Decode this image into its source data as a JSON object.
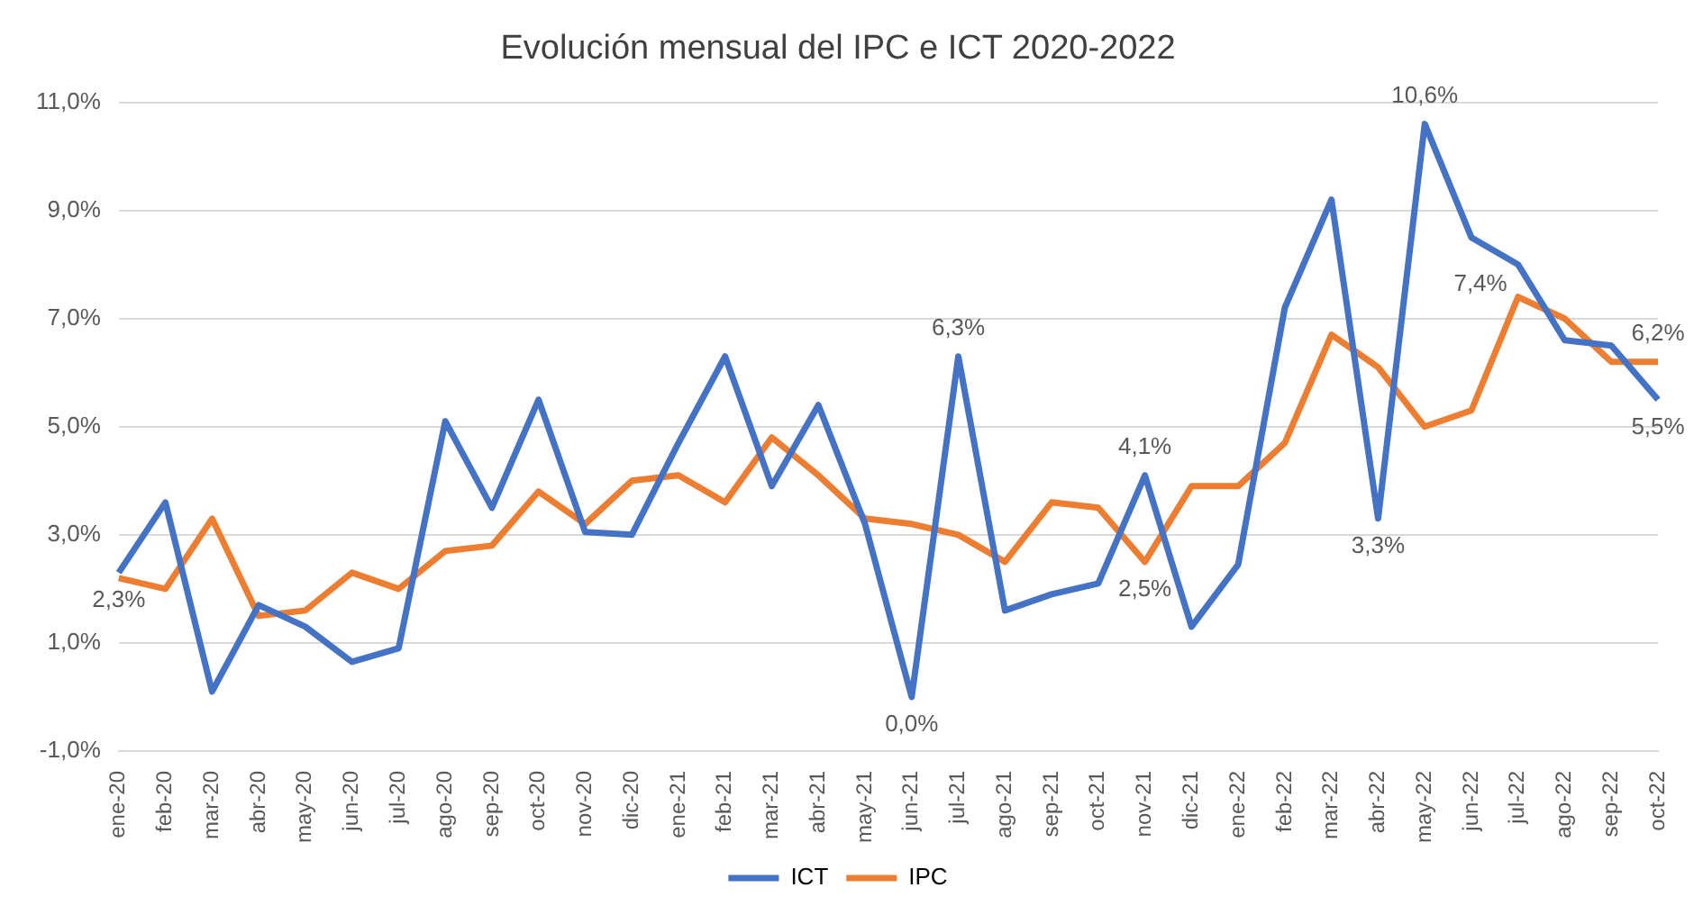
{
  "chart_data": {
    "type": "line",
    "title": "Evolución mensual del IPC e ICT 2020-2022",
    "categories": [
      "ene-20",
      "feb-20",
      "mar-20",
      "abr-20",
      "may-20",
      "jun-20",
      "jul-20",
      "ago-20",
      "sep-20",
      "oct-20",
      "nov-20",
      "dic-20",
      "ene-21",
      "feb-21",
      "mar-21",
      "abr-21",
      "may-21",
      "jun-21",
      "jul-21",
      "ago-21",
      "sep-21",
      "oct-21",
      "nov-21",
      "dic-21",
      "ene-22",
      "feb-22",
      "mar-22",
      "abr-22",
      "may-22",
      "jun-22",
      "jul-22",
      "ago-22",
      "sep-22",
      "oct-22"
    ],
    "series": [
      {
        "name": "ICT",
        "color": "#4472c4",
        "values": [
          2.3,
          3.6,
          0.1,
          1.7,
          1.3,
          0.65,
          0.9,
          5.1,
          3.5,
          5.5,
          3.05,
          3.0,
          4.7,
          6.3,
          3.9,
          5.4,
          3.2,
          0.0,
          6.3,
          1.6,
          1.9,
          2.1,
          4.1,
          1.3,
          2.45,
          7.2,
          9.2,
          3.3,
          10.6,
          8.5,
          8.0,
          6.6,
          6.5,
          5.5
        ],
        "value_labels": [
          "2,3%",
          null,
          null,
          null,
          null,
          null,
          null,
          null,
          null,
          null,
          null,
          null,
          null,
          null,
          null,
          null,
          null,
          "0,0%",
          "6,3%",
          null,
          null,
          null,
          "4,1%",
          null,
          null,
          null,
          null,
          "3,3%",
          "10,6%",
          null,
          null,
          null,
          null,
          "5,5%"
        ]
      },
      {
        "name": "IPC",
        "color": "#ed7d31",
        "values": [
          2.2,
          2.0,
          3.3,
          1.5,
          1.6,
          2.3,
          2.0,
          2.7,
          2.8,
          3.8,
          3.2,
          4.0,
          4.1,
          3.6,
          4.8,
          4.1,
          3.3,
          3.2,
          3.0,
          2.5,
          3.6,
          3.5,
          2.5,
          3.9,
          3.9,
          4.7,
          6.7,
          6.1,
          5.0,
          5.3,
          7.4,
          7.0,
          6.2,
          6.2
        ],
        "value_labels": [
          null,
          null,
          null,
          null,
          null,
          null,
          null,
          null,
          null,
          null,
          null,
          null,
          null,
          null,
          null,
          null,
          null,
          null,
          null,
          null,
          null,
          null,
          "2,5%",
          null,
          null,
          null,
          null,
          null,
          null,
          null,
          "7,4%",
          null,
          null,
          "6,2%"
        ]
      }
    ],
    "ylim": [
      -1,
      11
    ],
    "yticks": [
      {
        "value": -1,
        "label": "-1,0%"
      },
      {
        "value": 1,
        "label": "1,0%"
      },
      {
        "value": 3,
        "label": "3,0%"
      },
      {
        "value": 5,
        "label": "5,0%"
      },
      {
        "value": 7,
        "label": "7,0%"
      },
      {
        "value": 9,
        "label": "9,0%"
      },
      {
        "value": 11,
        "label": "11,0%"
      }
    ],
    "grid": "y",
    "legend": "bottom",
    "marker": "none",
    "line_style": "solid"
  }
}
